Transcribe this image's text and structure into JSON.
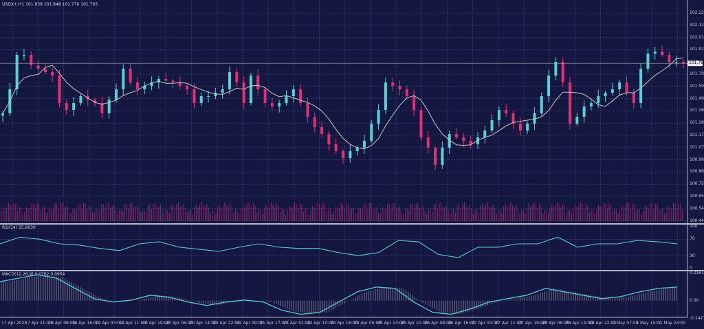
{
  "chart_data": [
    {
      "type": "candlestick",
      "title": "USDX+,H1  101.838 101.848 101.770 101.793",
      "symbol_header": "USDX+,H1  101.838 101.848 101.770 101.793",
      "current_price": "101.793",
      "price_ticks": [
        "102.225",
        "102.120",
        "102.015",
        "101.910",
        "101.700",
        "101.595",
        "101.490",
        "101.385",
        "101.280",
        "101.175",
        "101.070",
        "100.965",
        "100.860",
        "100.755",
        "100.650",
        "100.545",
        "100.440"
      ],
      "ylim": [
        100.44,
        102.225
      ],
      "time_labels": [
        "17 Apr 2023",
        "17 Apr 21:00",
        "18 Apr 08:00",
        "18 Apr 16:00",
        "19 Apr 03:00",
        "19 Apr 11:00",
        "19 Apr 19:00",
        "20 Apr 06:00",
        "20 Apr 14:00",
        "20 Apr 22:00",
        "21 Apr 09:00",
        "21 Apr 17:00",
        "24 Apr 02:00",
        "24 Apr 10:00",
        "24 Apr 18:00",
        "25 Apr 05:00",
        "25 Apr 13:00",
        "25 Apr 21:00",
        "26 Apr 08:00",
        "26 Apr 16:00",
        "27 Apr 03:00",
        "27 Apr 11:00",
        "27 Apr 19:00",
        "28 Apr 06:00",
        "28 Apr 14:00",
        "28 Apr 22:00",
        "1 May 07:00",
        "1 May 15:00",
        "1 May 23:00"
      ],
      "closes": [
        101.364,
        101.57,
        101.865,
        101.865,
        101.777,
        101.747,
        101.718,
        101.688,
        101.452,
        101.393,
        101.452,
        101.511,
        101.482,
        101.452,
        101.364,
        101.482,
        101.57,
        101.747,
        101.629,
        101.57,
        101.6,
        101.629,
        101.659,
        101.644,
        101.629,
        101.6,
        101.57,
        101.452,
        101.511,
        101.511,
        101.54,
        101.57,
        101.718,
        101.629,
        101.452,
        101.688,
        101.57,
        101.452,
        101.423,
        101.452,
        101.511,
        101.57,
        101.452,
        101.334,
        101.246,
        101.187,
        101.098,
        101.039,
        100.98,
        101.039,
        101.069,
        101.128,
        101.275,
        101.393,
        101.629,
        101.6,
        101.57,
        101.511,
        101.393,
        101.157,
        101.069,
        100.921,
        101.069,
        101.187,
        101.157,
        101.128,
        101.098,
        101.157,
        101.216,
        101.305,
        101.393,
        101.364,
        101.275,
        101.216,
        101.275,
        101.364,
        101.511,
        101.688,
        101.806,
        101.629,
        101.275,
        101.334,
        101.423,
        101.452,
        101.511,
        101.541,
        101.57,
        101.629,
        101.541,
        101.452,
        101.747,
        101.877,
        101.895,
        101.865,
        101.806,
        101.806,
        101.793
      ],
      "moving_average_color": "#c8c8c8",
      "bull_color": "#5ad0d6",
      "bear_color": "#e0307a"
    },
    {
      "type": "line",
      "title": "RSI(14) 55.9030",
      "ticks": [
        "100",
        "70",
        "30",
        "0"
      ],
      "ylim": [
        0,
        100
      ],
      "values": [
        59,
        75,
        70,
        59,
        56,
        48,
        43,
        59,
        64,
        51,
        46,
        41,
        51,
        59,
        51,
        48,
        48,
        38,
        31,
        38,
        67,
        64,
        34,
        26,
        51,
        51,
        59,
        59,
        75,
        51,
        59,
        59,
        67,
        64,
        59
      ]
    },
    {
      "type": "line",
      "title": "MACD(12,26,9) 0.0762 0.0954",
      "ticks": [
        "0.2161",
        "0.00",
        "-0.1427"
      ],
      "ylim": [
        -0.1427,
        0.2161
      ],
      "values": [
        0.151,
        0.178,
        0.205,
        0.178,
        0.097,
        0.016,
        -0.011,
        0.005,
        0.043,
        0.027,
        -0.011,
        -0.038,
        -0.011,
        0.005,
        -0.011,
        -0.076,
        -0.108,
        -0.092,
        -0.011,
        0.07,
        0.108,
        0.097,
        -0.011,
        -0.092,
        -0.108,
        -0.065,
        -0.011,
        0.016,
        0.043,
        0.097,
        0.07,
        0.043,
        0.016,
        0.032,
        0.07,
        0.097,
        0.108
      ]
    }
  ]
}
